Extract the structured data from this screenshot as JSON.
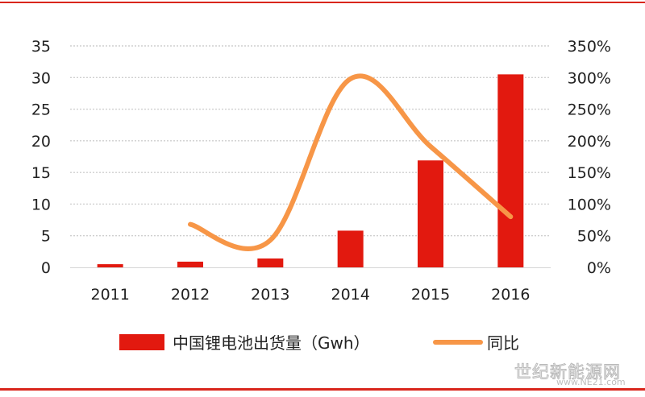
{
  "chart_data": {
    "type": "bar",
    "categories": [
      "2011",
      "2012",
      "2013",
      "2014",
      "2015",
      "2016"
    ],
    "series": [
      {
        "name": "中国锂电池出货量（Gwh）",
        "type": "bar",
        "axis": "left",
        "values": [
          0.5,
          0.9,
          1.4,
          5.8,
          16.9,
          30.5
        ],
        "color": "#e2190f"
      },
      {
        "name": "同比",
        "type": "line",
        "axis": "right",
        "values": [
          null,
          68,
          43,
          298,
          191,
          80
        ],
        "color": "#f79647",
        "unit": "%"
      }
    ],
    "y_left": {
      "min": 0,
      "max": 35,
      "ticks": [
        "0",
        "5",
        "10",
        "15",
        "20",
        "25",
        "30",
        "35"
      ]
    },
    "y_right": {
      "min": 0,
      "max": 350,
      "ticks": [
        "0%",
        "50%",
        "100%",
        "150%",
        "200%",
        "250%",
        "300%",
        "350%"
      ]
    },
    "grid": true,
    "legend_position": "bottom",
    "title": "",
    "xlabel": "",
    "ylabel": ""
  },
  "watermark": {
    "text": "世纪新能源网",
    "subtext": "www.NE21.com"
  }
}
